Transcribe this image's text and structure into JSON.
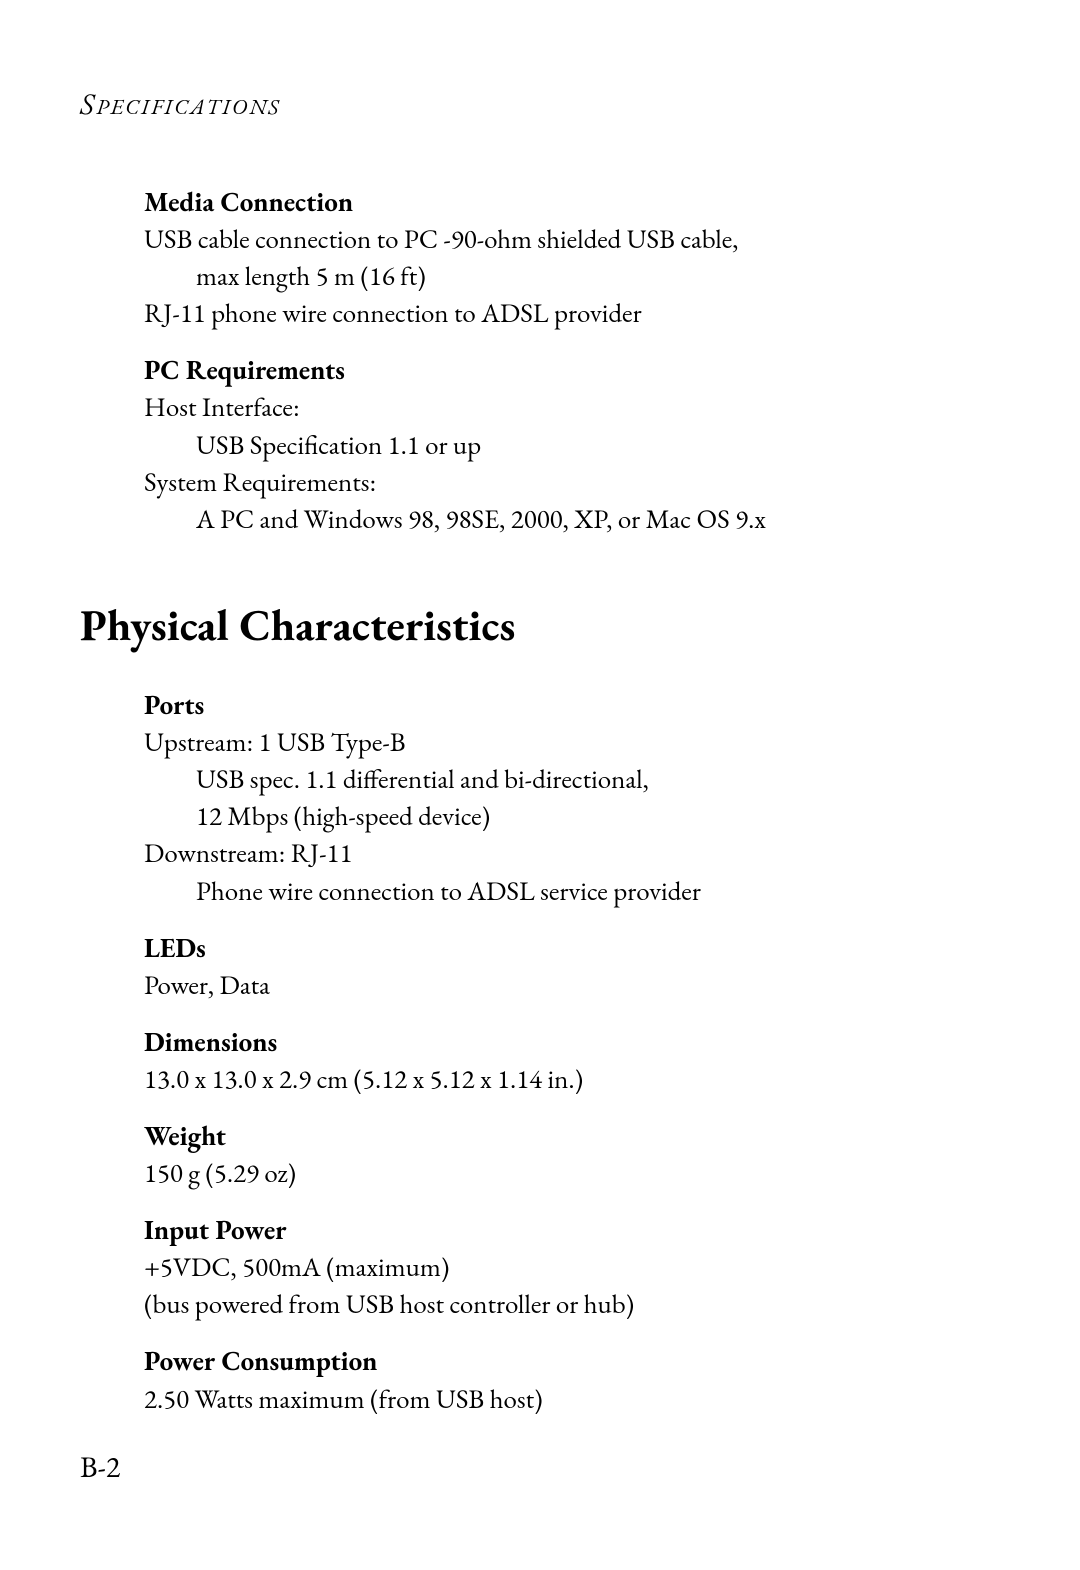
{
  "header": {
    "cap": "S",
    "rest": "PECIFICATIONS"
  },
  "section1": {
    "mediaConnection": {
      "heading": "Media Connection",
      "line1": "USB cable connection to PC -90-ohm shielded USB cable,",
      "line2": "max length 5 m (16 ft)",
      "line3": "RJ-11 phone wire connection to ADSL provider"
    },
    "pcRequirements": {
      "heading": "PC Requirements",
      "hostLabel": "Host Interface:",
      "hostValue": "USB Specification 1.1 or up",
      "sysLabel": "System Requirements:",
      "sysValue": "A PC and Windows 98, 98SE, 2000, XP, or Mac OS 9.x"
    }
  },
  "section2": {
    "title": "Physical Characteristics",
    "ports": {
      "heading": "Ports",
      "upstream": "Upstream: 1 USB Type-B",
      "upstreamDetail1": "USB spec. 1.1 differential and bi-directional,",
      "upstreamDetail2": "12 Mbps (high-speed device)",
      "downstream": "Downstream: RJ-11",
      "downstreamDetail": "Phone wire connection to ADSL service provider"
    },
    "leds": {
      "heading": "LEDs",
      "value": "Power, Data"
    },
    "dimensions": {
      "heading": "Dimensions",
      "value": "13.0 x 13.0 x 2.9 cm (5.12 x 5.12 x 1.14 in.)"
    },
    "weight": {
      "heading": "Weight",
      "value": "150 g (5.29 oz)"
    },
    "inputPower": {
      "heading": "Input Power",
      "value1": "+5VDC, 500mA (maximum)",
      "value2": "(bus powered from USB host controller or hub)"
    },
    "powerConsumption": {
      "heading": "Power Consumption",
      "value": "2.50 Watts maximum (from USB host)"
    }
  },
  "pageNumber": "B-2",
  "style": {
    "bodyFontSize": 27,
    "sectionTitleFontSize": 44,
    "textColor": "#000000",
    "background": "#ffffff"
  }
}
